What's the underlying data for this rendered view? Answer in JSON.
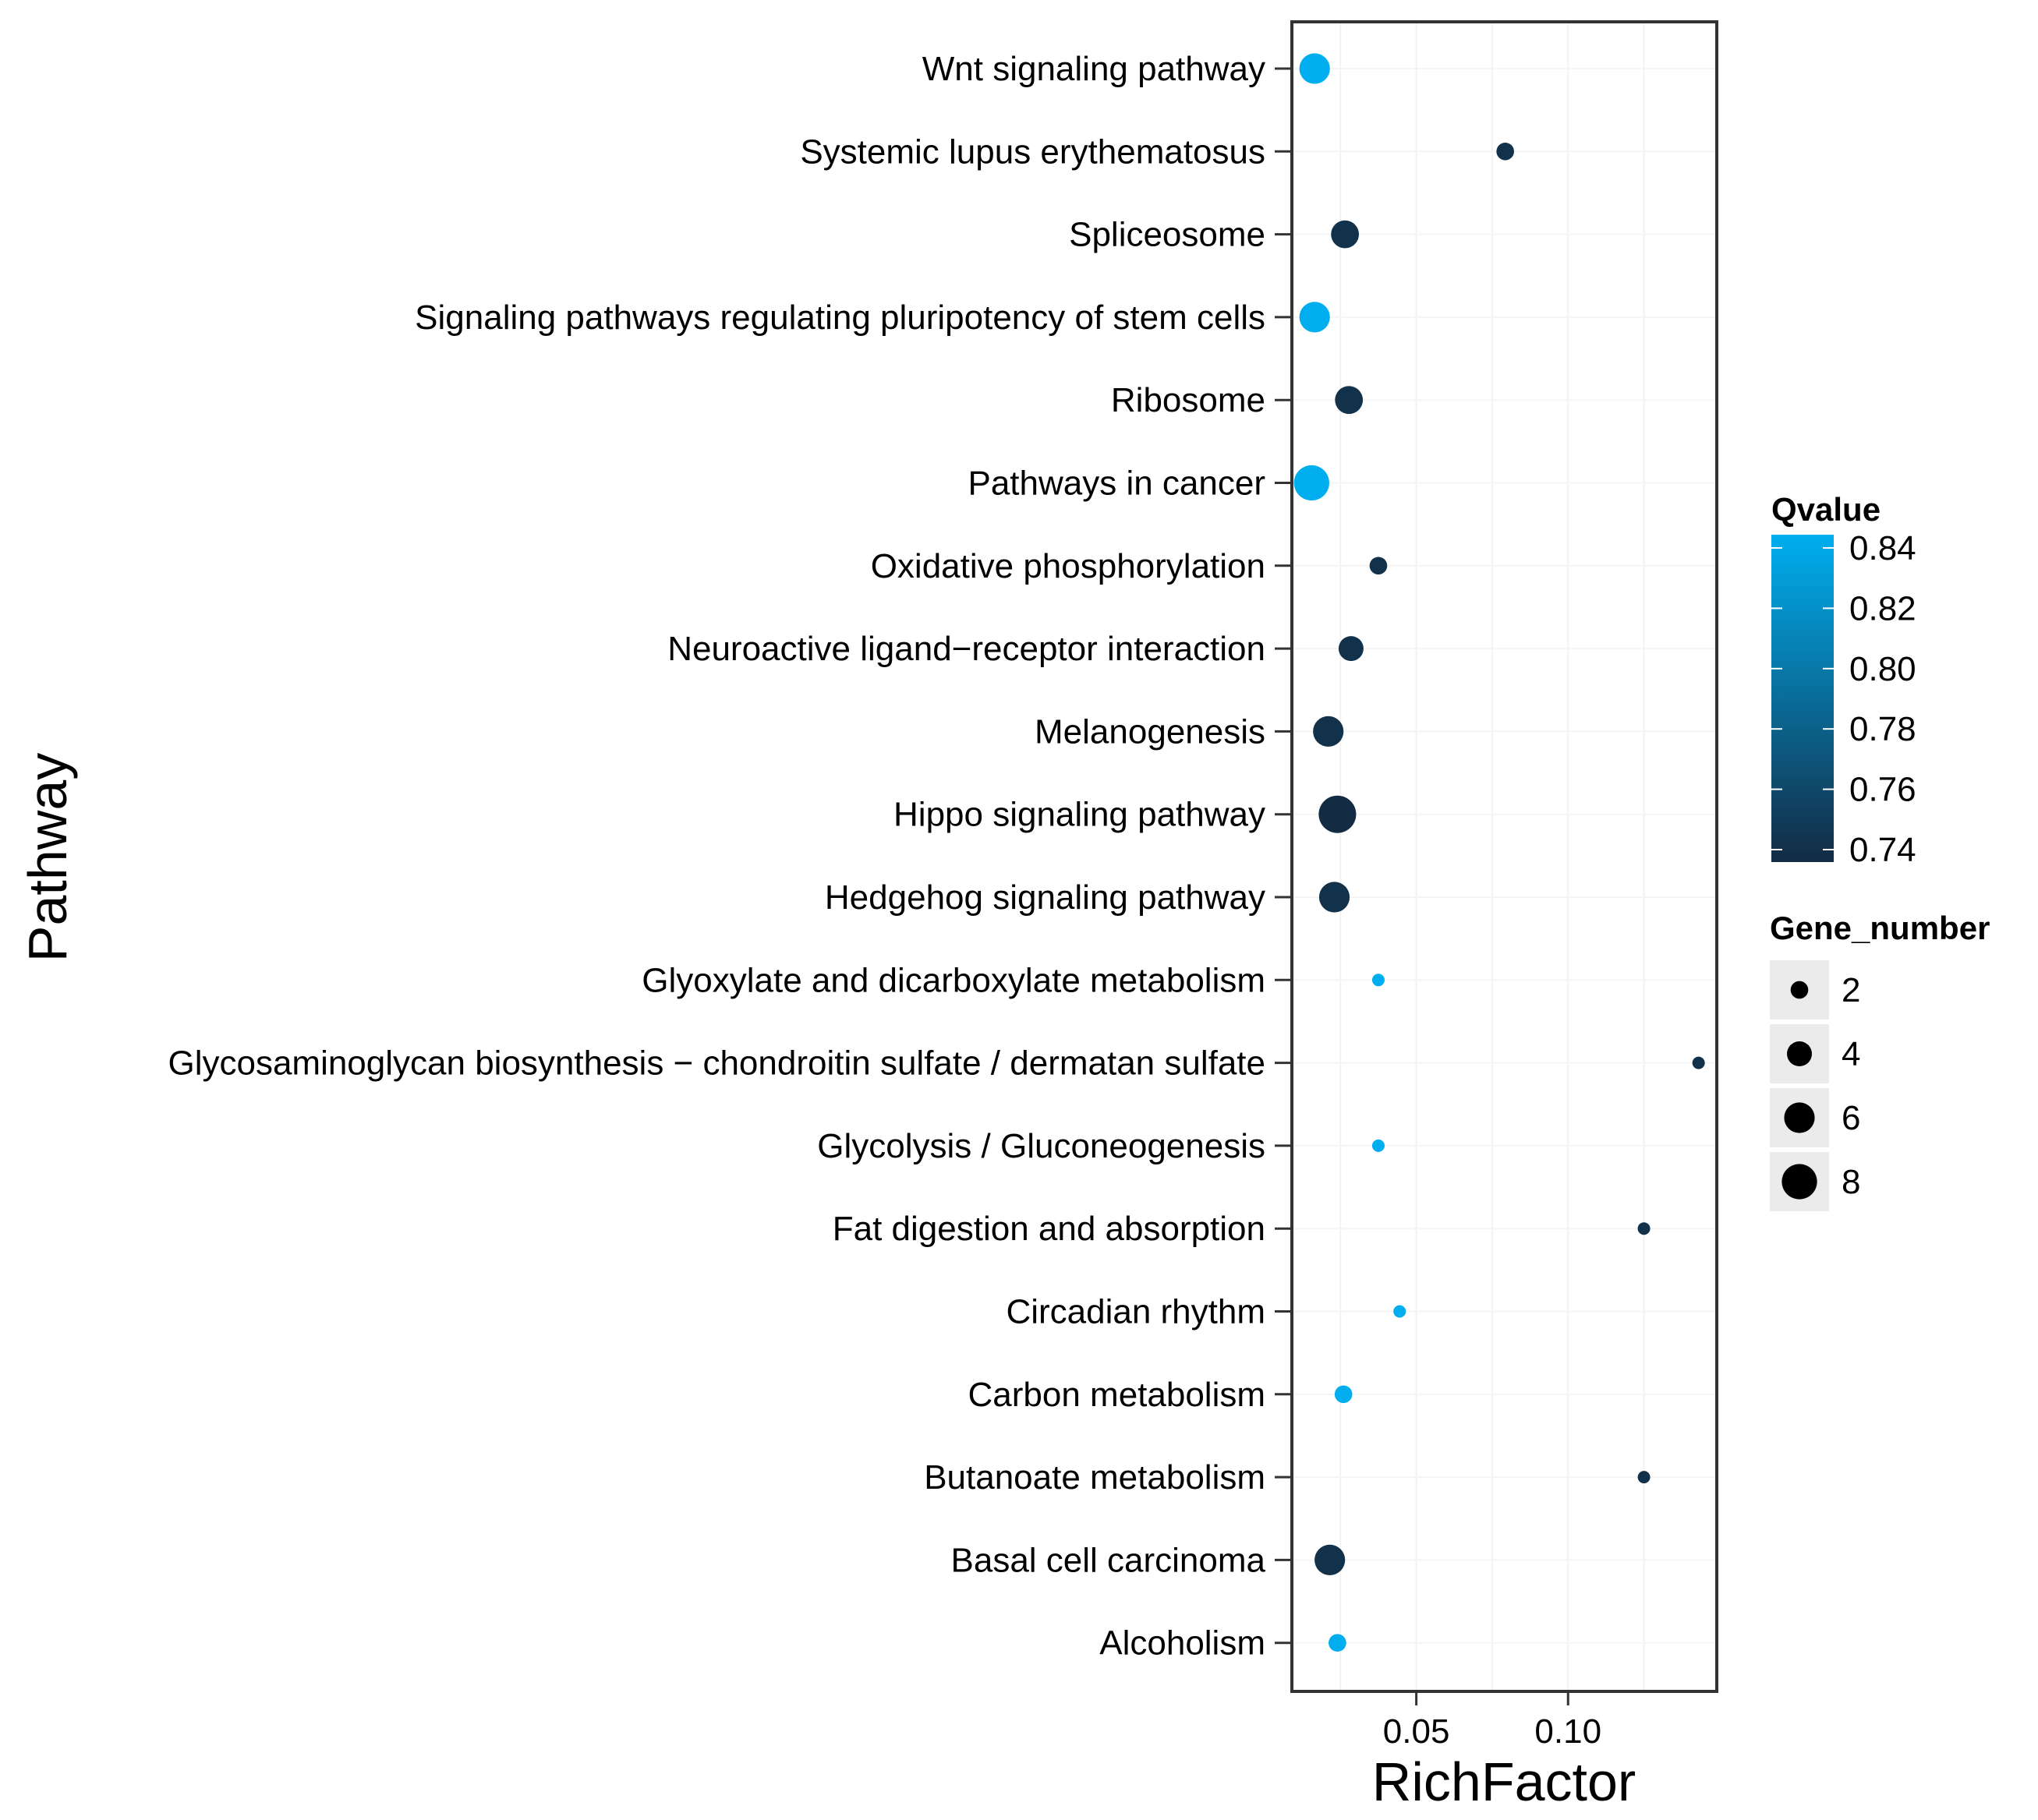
{
  "chart_data": {
    "type": "scatter",
    "subtype": "bubble",
    "title": "",
    "xlabel": "RichFactor",
    "ylabel": "Pathway",
    "xlim": [
      0.009,
      0.149
    ],
    "xticks": [
      0.05,
      0.1
    ],
    "xtick_labels": [
      "0.05",
      "0.10"
    ],
    "grid": true,
    "legend_position": "right",
    "categories": [
      "Wnt signaling pathway",
      "Systemic lupus erythematosus",
      "Spliceosome",
      "Signaling pathways regulating pluripotency of stem cells",
      "Ribosome",
      "Pathways in cancer",
      "Oxidative phosphorylation",
      "Neuroactive ligand−receptor interaction",
      "Melanogenesis",
      "Hippo signaling pathway",
      "Hedgehog signaling pathway",
      "Glyoxylate and dicarboxylate metabolism",
      "Glycosaminoglycan biosynthesis − chondroitin sulfate / dermatan sulfate",
      "Glycolysis / Gluconeogenesis",
      "Fat digestion and absorption",
      "Circadian rhythm",
      "Carbon metabolism",
      "Butanoate metabolism",
      "Basal cell carcinoma",
      "Alcoholism"
    ],
    "points": [
      {
        "pathway": "Wnt signaling pathway",
        "rich_factor": 0.0165,
        "gene_number": 6,
        "qvalue": 0.84
      },
      {
        "pathway": "Systemic lupus erythematosus",
        "rich_factor": 0.0793,
        "gene_number": 2,
        "qvalue": 0.745
      },
      {
        "pathway": "Spliceosome",
        "rich_factor": 0.0265,
        "gene_number": 5,
        "qvalue": 0.745
      },
      {
        "pathway": "Signaling pathways regulating pluripotency of stem cells",
        "rich_factor": 0.0165,
        "gene_number": 6,
        "qvalue": 0.84
      },
      {
        "pathway": "Ribosome",
        "rich_factor": 0.0278,
        "gene_number": 5,
        "qvalue": 0.745
      },
      {
        "pathway": "Pathways in cancer",
        "rich_factor": 0.0155,
        "gene_number": 8,
        "qvalue": 0.84
      },
      {
        "pathway": "Oxidative phosphorylation",
        "rich_factor": 0.0375,
        "gene_number": 2,
        "qvalue": 0.745
      },
      {
        "pathway": "Neuroactive ligand−receptor interaction",
        "rich_factor": 0.0285,
        "gene_number": 4,
        "qvalue": 0.745
      },
      {
        "pathway": "Melanogenesis",
        "rich_factor": 0.021,
        "gene_number": 6,
        "qvalue": 0.745
      },
      {
        "pathway": "Hippo signaling pathway",
        "rich_factor": 0.024,
        "gene_number": 9,
        "qvalue": 0.74
      },
      {
        "pathway": "Hedgehog signaling pathway",
        "rich_factor": 0.023,
        "gene_number": 6,
        "qvalue": 0.745
      },
      {
        "pathway": "Glyoxylate and dicarboxylate metabolism",
        "rich_factor": 0.0375,
        "gene_number": 1,
        "qvalue": 0.84
      },
      {
        "pathway": "Glycosaminoglycan biosynthesis − chondroitin sulfate / dermatan sulfate",
        "rich_factor": 0.143,
        "gene_number": 1,
        "qvalue": 0.745
      },
      {
        "pathway": "Glycolysis / Gluconeogenesis",
        "rich_factor": 0.0375,
        "gene_number": 1,
        "qvalue": 0.84
      },
      {
        "pathway": "Fat digestion and absorption",
        "rich_factor": 0.125,
        "gene_number": 1,
        "qvalue": 0.745
      },
      {
        "pathway": "Circadian rhythm",
        "rich_factor": 0.0445,
        "gene_number": 1,
        "qvalue": 0.84
      },
      {
        "pathway": "Carbon metabolism",
        "rich_factor": 0.026,
        "gene_number": 2,
        "qvalue": 0.84
      },
      {
        "pathway": "Butanoate metabolism",
        "rich_factor": 0.125,
        "gene_number": 1,
        "qvalue": 0.745
      },
      {
        "pathway": "Basal cell carcinoma",
        "rich_factor": 0.0215,
        "gene_number": 6,
        "qvalue": 0.745
      },
      {
        "pathway": "Alcoholism",
        "rich_factor": 0.024,
        "gene_number": 2,
        "qvalue": 0.84
      }
    ],
    "color_legend": {
      "title": "Qvalue",
      "min": 0.74,
      "max": 0.84,
      "ticks": [
        0.84,
        0.82,
        0.8,
        0.78,
        0.76,
        0.74
      ],
      "tick_labels": [
        "0.84",
        "0.82",
        "0.80",
        "0.78",
        "0.76",
        "0.74"
      ],
      "low_color": "#132B43",
      "high_color": "#00AEEF"
    },
    "size_legend": {
      "title": "Gene_number",
      "values": [
        2,
        4,
        6,
        8
      ],
      "labels": [
        "2",
        "4",
        "6",
        "8"
      ]
    }
  }
}
